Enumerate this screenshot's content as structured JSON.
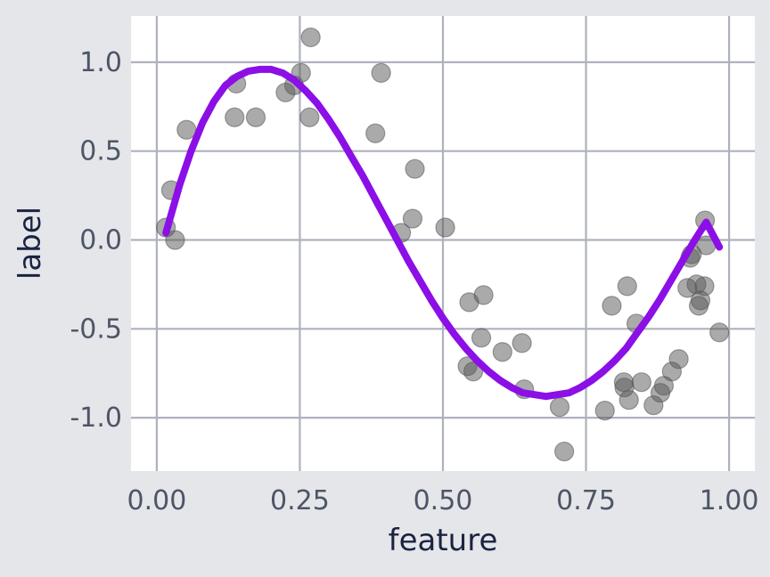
{
  "chart_data": {
    "type": "scatter",
    "xlabel": "feature",
    "ylabel": "label",
    "xlim": [
      -0.045,
      1.045
    ],
    "ylim": [
      -1.3,
      1.26
    ],
    "x_ticks": [
      0.0,
      0.25,
      0.5,
      0.75,
      1.0
    ],
    "x_tick_labels": [
      "0.00",
      "0.25",
      "0.50",
      "0.75",
      "1.00"
    ],
    "y_ticks": [
      -1.0,
      -0.5,
      0.0,
      0.5,
      1.0
    ],
    "y_tick_labels": [
      "-1.0",
      "-0.5",
      "0.0",
      "0.5",
      "1.0"
    ],
    "grid": true,
    "legend": "none",
    "colors": {
      "background": "#e5e6ea",
      "plot_background": "#ffffff",
      "grid": "#aeb2bd",
      "points": "#555555",
      "curve": "#8b0fe6"
    },
    "points": [
      {
        "x": 0.016,
        "y": 0.07
      },
      {
        "x": 0.025,
        "y": 0.28
      },
      {
        "x": 0.032,
        "y": 0.0
      },
      {
        "x": 0.052,
        "y": 0.62
      },
      {
        "x": 0.136,
        "y": 0.69
      },
      {
        "x": 0.139,
        "y": 0.88
      },
      {
        "x": 0.173,
        "y": 0.69
      },
      {
        "x": 0.225,
        "y": 0.83
      },
      {
        "x": 0.24,
        "y": 0.87
      },
      {
        "x": 0.252,
        "y": 0.94
      },
      {
        "x": 0.267,
        "y": 0.69
      },
      {
        "x": 0.269,
        "y": 1.14
      },
      {
        "x": 0.382,
        "y": 0.6
      },
      {
        "x": 0.392,
        "y": 0.94
      },
      {
        "x": 0.427,
        "y": 0.04
      },
      {
        "x": 0.447,
        "y": 0.12
      },
      {
        "x": 0.451,
        "y": 0.4
      },
      {
        "x": 0.504,
        "y": 0.07
      },
      {
        "x": 0.543,
        "y": -0.71
      },
      {
        "x": 0.546,
        "y": -0.35
      },
      {
        "x": 0.553,
        "y": -0.74
      },
      {
        "x": 0.567,
        "y": -0.55
      },
      {
        "x": 0.571,
        "y": -0.31
      },
      {
        "x": 0.604,
        "y": -0.63
      },
      {
        "x": 0.638,
        "y": -0.58
      },
      {
        "x": 0.642,
        "y": -0.84
      },
      {
        "x": 0.704,
        "y": -0.94
      },
      {
        "x": 0.712,
        "y": -1.19
      },
      {
        "x": 0.783,
        "y": -0.96
      },
      {
        "x": 0.795,
        "y": -0.37
      },
      {
        "x": 0.816,
        "y": -0.8
      },
      {
        "x": 0.817,
        "y": -0.83
      },
      {
        "x": 0.822,
        "y": -0.26
      },
      {
        "x": 0.825,
        "y": -0.9
      },
      {
        "x": 0.838,
        "y": -0.47
      },
      {
        "x": 0.847,
        "y": -0.8
      },
      {
        "x": 0.868,
        "y": -0.93
      },
      {
        "x": 0.88,
        "y": -0.86
      },
      {
        "x": 0.886,
        "y": -0.82
      },
      {
        "x": 0.9,
        "y": -0.74
      },
      {
        "x": 0.912,
        "y": -0.67
      },
      {
        "x": 0.927,
        "y": -0.27
      },
      {
        "x": 0.932,
        "y": -0.1
      },
      {
        "x": 0.935,
        "y": -0.08
      },
      {
        "x": 0.943,
        "y": -0.25
      },
      {
        "x": 0.947,
        "y": -0.37
      },
      {
        "x": 0.95,
        "y": -0.34
      },
      {
        "x": 0.957,
        "y": -0.26
      },
      {
        "x": 0.958,
        "y": 0.11
      },
      {
        "x": 0.96,
        "y": -0.03
      },
      {
        "x": 0.983,
        "y": -0.52
      }
    ],
    "curve": {
      "x": [
        0.016,
        0.04,
        0.06,
        0.08,
        0.1,
        0.12,
        0.14,
        0.16,
        0.18,
        0.2,
        0.22,
        0.24,
        0.26,
        0.28,
        0.3,
        0.32,
        0.34,
        0.36,
        0.38,
        0.4,
        0.42,
        0.44,
        0.46,
        0.48,
        0.5,
        0.52,
        0.54,
        0.56,
        0.58,
        0.6,
        0.62,
        0.64,
        0.66,
        0.68,
        0.7,
        0.72,
        0.74,
        0.76,
        0.78,
        0.8,
        0.82,
        0.84,
        0.86,
        0.88,
        0.9,
        0.92,
        0.94,
        0.96,
        0.983
      ],
      "y": [
        0.04,
        0.31,
        0.5,
        0.66,
        0.78,
        0.87,
        0.92,
        0.95,
        0.96,
        0.96,
        0.94,
        0.9,
        0.84,
        0.77,
        0.68,
        0.58,
        0.47,
        0.36,
        0.24,
        0.12,
        -0.0,
        -0.12,
        -0.23,
        -0.34,
        -0.44,
        -0.53,
        -0.61,
        -0.68,
        -0.74,
        -0.79,
        -0.83,
        -0.86,
        -0.87,
        -0.88,
        -0.87,
        -0.86,
        -0.83,
        -0.79,
        -0.74,
        -0.68,
        -0.61,
        -0.52,
        -0.43,
        -0.33,
        -0.22,
        -0.11,
        0.0,
        0.1,
        -0.04
      ]
    }
  }
}
